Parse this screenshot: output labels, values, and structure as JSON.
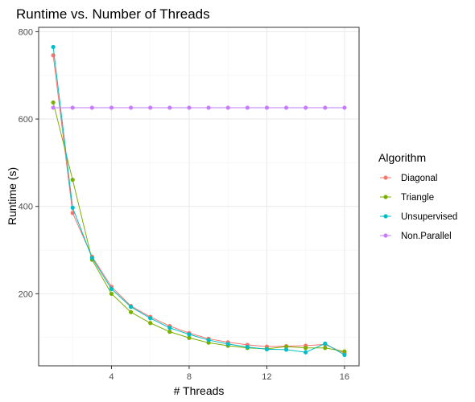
{
  "chart_data": {
    "type": "line",
    "title": "Runtime vs. Number of Threads",
    "xlabel": "# Threads",
    "ylabel": "Runtime (s)",
    "xlim": [
      0.25,
      16.75
    ],
    "ylim": [
      35,
      810
    ],
    "x_ticks": [
      4,
      8,
      12,
      16
    ],
    "y_ticks": [
      200,
      400,
      600,
      800
    ],
    "x_minor_ticks": [
      2,
      6,
      10,
      14
    ],
    "y_minor_ticks": [
      100,
      300,
      500,
      700
    ],
    "grid": true,
    "legend_title": "Algorithm",
    "legend_position": "right",
    "x": [
      1,
      2,
      3,
      4,
      5,
      6,
      7,
      8,
      9,
      10,
      11,
      12,
      13,
      14,
      15,
      16
    ],
    "series": [
      {
        "name": "Diagonal",
        "color": "#F8766D",
        "values": [
          746,
          385,
          285,
          216,
          172,
          147,
          126,
          110,
          97,
          89,
          83,
          79,
          80,
          81,
          84,
          64
        ]
      },
      {
        "name": "Triangle",
        "color": "#7CAE00",
        "values": [
          638,
          461,
          278,
          200,
          158,
          133,
          113,
          99,
          88,
          81,
          76,
          74,
          79,
          76,
          76,
          68
        ]
      },
      {
        "name": "Unsupervised",
        "color": "#00BFC4",
        "values": [
          765,
          397,
          282,
          211,
          170,
          144,
          122,
          107,
          94,
          85,
          78,
          73,
          72,
          66,
          86,
          60
        ]
      },
      {
        "name": "Non.Parallel",
        "color": "#C77CFF",
        "values": [
          626,
          626,
          626,
          626,
          626,
          626,
          626,
          626,
          626,
          626,
          626,
          626,
          626,
          626,
          626,
          626
        ]
      }
    ]
  },
  "colors": {
    "panel_border": "#333333",
    "grid_major": "#ebebeb",
    "grid_minor": "#f3f3f3",
    "tick": "#333333"
  }
}
